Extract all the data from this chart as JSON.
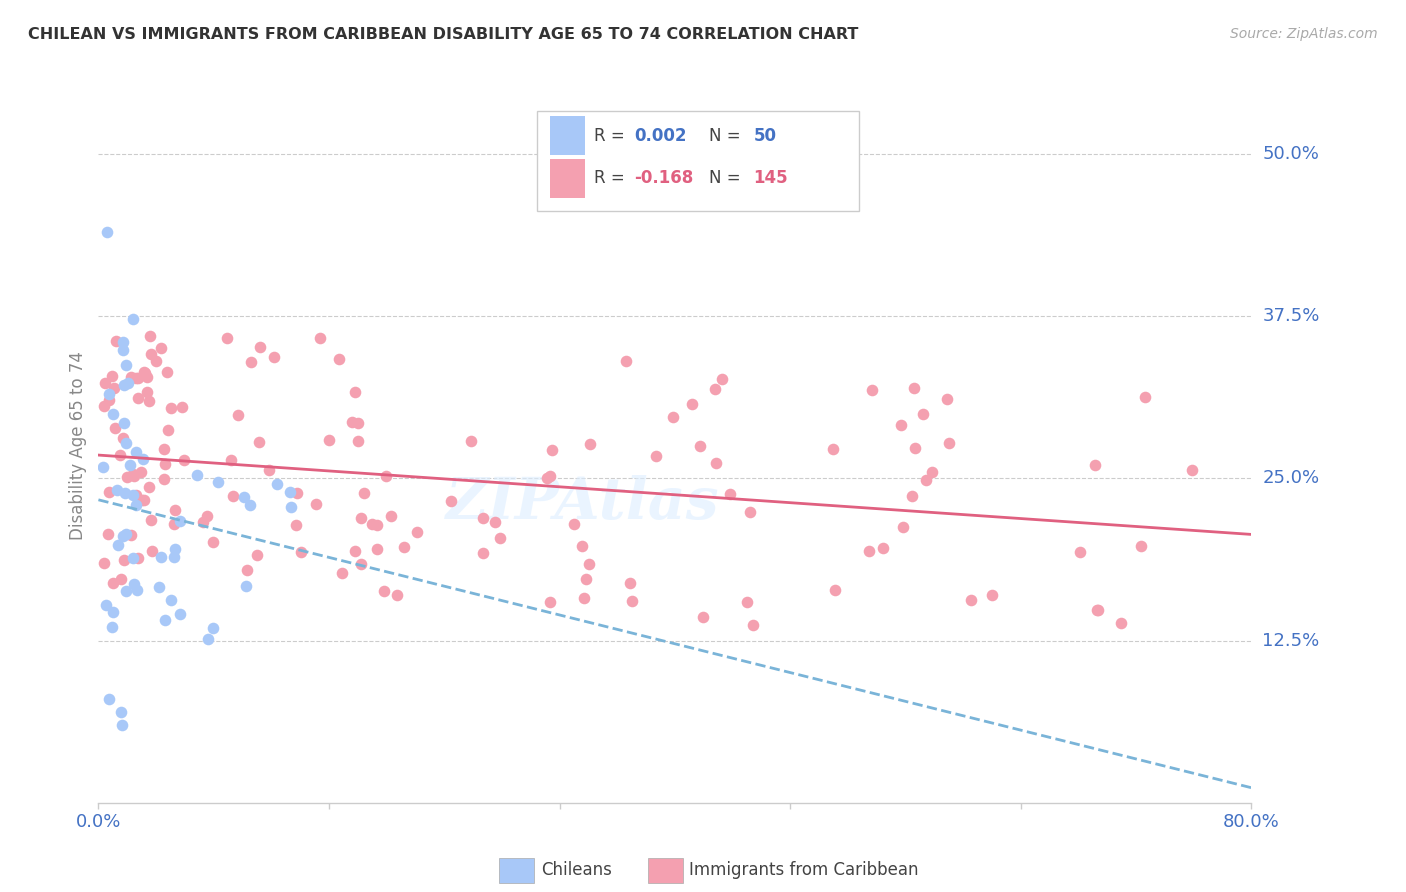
{
  "title": "CHILEAN VS IMMIGRANTS FROM CARIBBEAN DISABILITY AGE 65 TO 74 CORRELATION CHART",
  "source": "Source: ZipAtlas.com",
  "ylabel": "Disability Age 65 to 74",
  "ytick_labels": [
    "12.5%",
    "25.0%",
    "37.5%",
    "50.0%"
  ],
  "ytick_values": [
    0.125,
    0.25,
    0.375,
    0.5
  ],
  "xlim": [
    0.0,
    0.8
  ],
  "ylim": [
    0.0,
    0.55
  ],
  "chilean_color": "#a8c8f8",
  "immigrant_color": "#f4a0b0",
  "trendline_chilean_color": "#7ab4d8",
  "trendline_immigrant_color": "#e06080",
  "watermark": "ZIPAtlas",
  "grid_color": "#cccccc",
  "title_color": "#333333",
  "axis_label_color": "#4472c4",
  "ylabel_color": "#888888"
}
